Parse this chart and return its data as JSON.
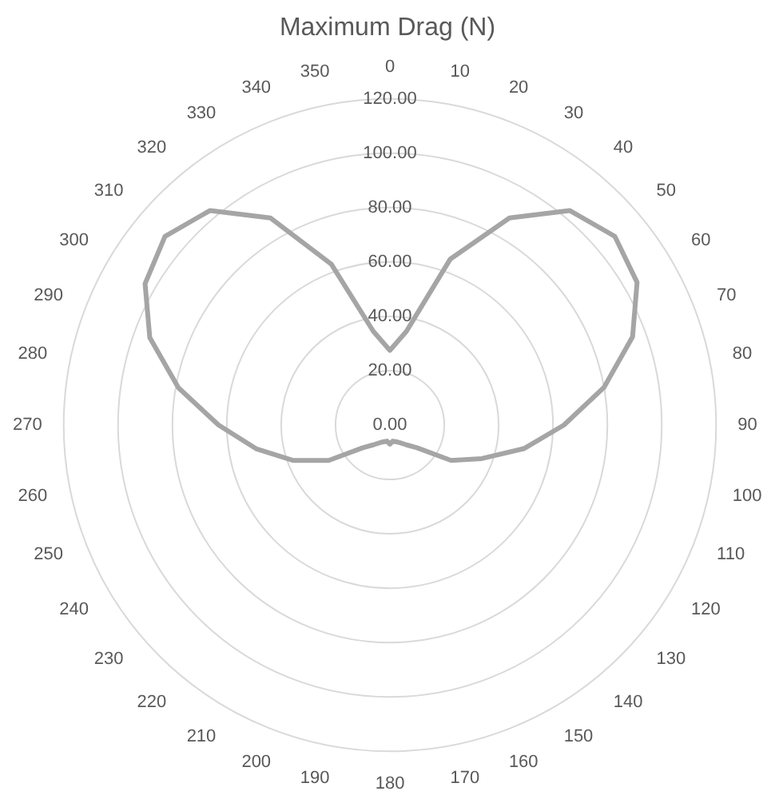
{
  "chart_data": {
    "type": "radar",
    "title": "Maximum Drag (N)",
    "categories": [
      "0",
      "10",
      "20",
      "30",
      "40",
      "50",
      "60",
      "70",
      "80",
      "90",
      "100",
      "110",
      "120",
      "130",
      "140",
      "150",
      "160",
      "170",
      "180",
      "190",
      "200",
      "210",
      "220",
      "230",
      "240",
      "250",
      "260",
      "270",
      "280",
      "290",
      "300",
      "310",
      "320",
      "330",
      "340",
      "350"
    ],
    "series": [
      {
        "color": "#a5a5a5",
        "values": [
          27.5,
          35,
          65,
          88,
          103,
          108,
          105,
          95,
          80,
          64,
          50,
          36,
          26,
          13,
          9.5,
          7.5,
          6.5,
          6,
          7,
          6,
          6.5,
          7.5,
          9.5,
          13,
          26,
          38,
          50,
          63,
          79,
          94,
          104,
          108,
          103,
          88,
          63,
          35
        ]
      }
    ],
    "ylim": [
      0,
      120
    ],
    "yticks": [
      {
        "value": 0,
        "label": "0.00"
      },
      {
        "value": 20,
        "label": "20.00"
      },
      {
        "value": 40,
        "label": "40.00"
      },
      {
        "value": 60,
        "label": "60.00"
      },
      {
        "value": 80,
        "label": "80.00"
      },
      {
        "value": 100,
        "label": "100.00"
      },
      {
        "value": 120,
        "label": "120.00"
      }
    ],
    "grid": true,
    "legend": false,
    "marker": "none",
    "line_style": "solid"
  }
}
